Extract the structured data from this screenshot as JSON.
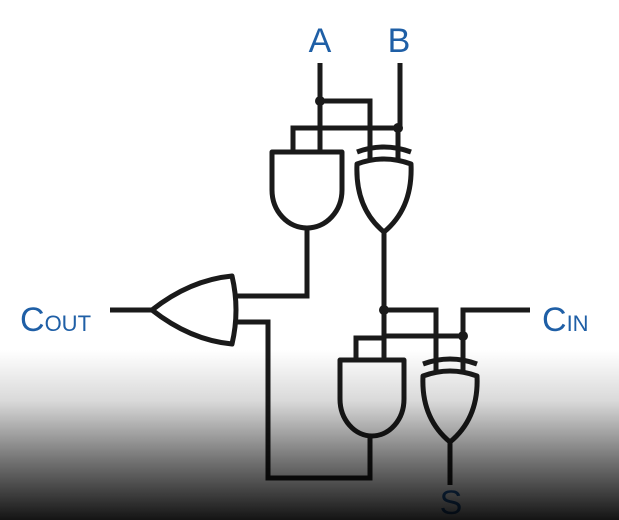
{
  "colors": {
    "label": "#1f5fa6",
    "wire": "#1a1a1a"
  },
  "labels": {
    "input_a": "A",
    "input_b": "B",
    "carry_out": {
      "main": "C",
      "sub": "OUT"
    },
    "carry_in": {
      "main": "C",
      "sub": "IN"
    },
    "sum": "S"
  },
  "gates": [
    "and-gate",
    "xor-gate",
    "or-gate",
    "and-gate",
    "xor-gate"
  ]
}
